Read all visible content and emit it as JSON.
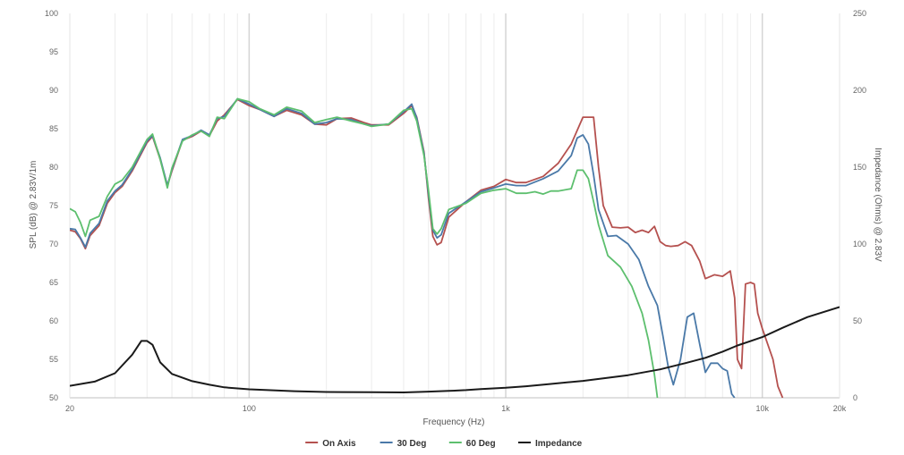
{
  "chart_data": {
    "type": "line",
    "title": "",
    "xlabel": "Frequency (Hz)",
    "ylabel": "SPL (dB) @ 2.83V/1m",
    "y2label": "Impedance (Ohms) @ 2.83V",
    "x_scale": "log",
    "xlim": [
      20,
      20000
    ],
    "ylim": [
      50,
      100
    ],
    "y2lim": [
      0,
      250
    ],
    "grid": "vertical",
    "x_ticks": [
      {
        "value": 20,
        "label": "20"
      },
      {
        "value": 100,
        "label": "100"
      },
      {
        "value": 1000,
        "label": "1k"
      },
      {
        "value": 10000,
        "label": "10k"
      },
      {
        "value": 20000,
        "label": "20k"
      }
    ],
    "y_ticks": [
      "50",
      "55",
      "60",
      "65",
      "70",
      "75",
      "80",
      "85",
      "90",
      "95",
      "100"
    ],
    "y2_ticks": [
      "0",
      "50",
      "100",
      "150",
      "200",
      "250"
    ],
    "legend_position": "bottom-center",
    "series": [
      {
        "name": "On Axis",
        "color": "#b5514f",
        "axis": "left",
        "points": [
          [
            20,
            71.8
          ],
          [
            21,
            71.6
          ],
          [
            22,
            70.7
          ],
          [
            23,
            69.4
          ],
          [
            24,
            71.1
          ],
          [
            26,
            72.4
          ],
          [
            28,
            75.3
          ],
          [
            30,
            76.7
          ],
          [
            32,
            77.5
          ],
          [
            35,
            79.5
          ],
          [
            40,
            83.2
          ],
          [
            42,
            84.0
          ],
          [
            45,
            81.0
          ],
          [
            48,
            77.6
          ],
          [
            50,
            79.5
          ],
          [
            55,
            83.5
          ],
          [
            60,
            84.0
          ],
          [
            65,
            84.7
          ],
          [
            70,
            84.1
          ],
          [
            75,
            86.0
          ],
          [
            80,
            86.8
          ],
          [
            90,
            88.8
          ],
          [
            100,
            88.0
          ],
          [
            110,
            87.5
          ],
          [
            125,
            86.6
          ],
          [
            140,
            87.4
          ],
          [
            160,
            86.8
          ],
          [
            180,
            85.6
          ],
          [
            200,
            85.5
          ],
          [
            220,
            86.3
          ],
          [
            250,
            86.4
          ],
          [
            280,
            85.8
          ],
          [
            300,
            85.5
          ],
          [
            350,
            85.5
          ],
          [
            400,
            87.0
          ],
          [
            430,
            88.0
          ],
          [
            450,
            86.5
          ],
          [
            480,
            82.0
          ],
          [
            500,
            76.0
          ],
          [
            520,
            71.0
          ],
          [
            540,
            69.9
          ],
          [
            560,
            70.2
          ],
          [
            600,
            73.5
          ],
          [
            700,
            75.5
          ],
          [
            800,
            77.0
          ],
          [
            900,
            77.5
          ],
          [
            1000,
            78.4
          ],
          [
            1100,
            78.0
          ],
          [
            1200,
            78.0
          ],
          [
            1400,
            78.8
          ],
          [
            1600,
            80.5
          ],
          [
            1800,
            83.0
          ],
          [
            2000,
            86.5
          ],
          [
            2200,
            86.5
          ],
          [
            2300,
            80.0
          ],
          [
            2400,
            75.0
          ],
          [
            2600,
            72.2
          ],
          [
            2800,
            72.1
          ],
          [
            3000,
            72.2
          ],
          [
            3200,
            71.5
          ],
          [
            3400,
            71.8
          ],
          [
            3600,
            71.5
          ],
          [
            3800,
            72.3
          ],
          [
            4000,
            70.3
          ],
          [
            4200,
            69.8
          ],
          [
            4400,
            69.7
          ],
          [
            4700,
            69.8
          ],
          [
            5000,
            70.3
          ],
          [
            5300,
            69.8
          ],
          [
            5700,
            67.8
          ],
          [
            6000,
            65.5
          ],
          [
            6500,
            66.0
          ],
          [
            7000,
            65.8
          ],
          [
            7500,
            66.5
          ],
          [
            7800,
            63.0
          ],
          [
            8000,
            55.0
          ],
          [
            8300,
            53.8
          ],
          [
            8600,
            64.8
          ],
          [
            9000,
            65.0
          ],
          [
            9300,
            64.8
          ],
          [
            9600,
            61.0
          ],
          [
            10000,
            59.0
          ],
          [
            11000,
            55.0
          ],
          [
            11500,
            51.5
          ],
          [
            12000,
            50.0
          ]
        ]
      },
      {
        "name": "30 Deg",
        "color": "#4a79a8",
        "axis": "left",
        "points": [
          [
            20,
            72.0
          ],
          [
            21,
            71.9
          ],
          [
            22,
            70.8
          ],
          [
            23,
            69.6
          ],
          [
            24,
            71.4
          ],
          [
            26,
            72.7
          ],
          [
            28,
            75.6
          ],
          [
            30,
            76.9
          ],
          [
            32,
            77.7
          ],
          [
            35,
            79.7
          ],
          [
            40,
            83.4
          ],
          [
            42,
            84.1
          ],
          [
            45,
            81.2
          ],
          [
            48,
            77.6
          ],
          [
            50,
            79.7
          ],
          [
            55,
            83.6
          ],
          [
            60,
            84.1
          ],
          [
            65,
            84.8
          ],
          [
            70,
            84.2
          ],
          [
            75,
            86.3
          ],
          [
            80,
            86.6
          ],
          [
            90,
            88.9
          ],
          [
            100,
            88.2
          ],
          [
            110,
            87.5
          ],
          [
            125,
            86.6
          ],
          [
            140,
            87.6
          ],
          [
            160,
            87.0
          ],
          [
            180,
            85.6
          ],
          [
            200,
            85.8
          ],
          [
            220,
            86.3
          ],
          [
            250,
            86.2
          ],
          [
            280,
            85.6
          ],
          [
            300,
            85.4
          ],
          [
            350,
            85.6
          ],
          [
            400,
            87.2
          ],
          [
            430,
            88.2
          ],
          [
            450,
            86.4
          ],
          [
            480,
            81.8
          ],
          [
            500,
            76.5
          ],
          [
            520,
            71.8
          ],
          [
            540,
            70.8
          ],
          [
            560,
            71.2
          ],
          [
            600,
            74.0
          ],
          [
            700,
            75.5
          ],
          [
            800,
            76.8
          ],
          [
            900,
            77.3
          ],
          [
            1000,
            77.8
          ],
          [
            1100,
            77.6
          ],
          [
            1200,
            77.6
          ],
          [
            1400,
            78.5
          ],
          [
            1600,
            79.5
          ],
          [
            1800,
            81.5
          ],
          [
            1900,
            83.8
          ],
          [
            2000,
            84.2
          ],
          [
            2100,
            83.0
          ],
          [
            2200,
            79.0
          ],
          [
            2300,
            74.5
          ],
          [
            2500,
            71.0
          ],
          [
            2700,
            71.1
          ],
          [
            3000,
            70.0
          ],
          [
            3300,
            68.0
          ],
          [
            3600,
            64.5
          ],
          [
            3900,
            62.0
          ],
          [
            4100,
            58.0
          ],
          [
            4300,
            54.0
          ],
          [
            4500,
            51.7
          ],
          [
            4800,
            55.0
          ],
          [
            5100,
            60.5
          ],
          [
            5400,
            61.0
          ],
          [
            5700,
            57.0
          ],
          [
            6000,
            53.3
          ],
          [
            6300,
            54.5
          ],
          [
            6700,
            54.5
          ],
          [
            7000,
            53.8
          ],
          [
            7300,
            53.5
          ],
          [
            7600,
            50.5
          ],
          [
            7800,
            50.0
          ]
        ]
      },
      {
        "name": "60 Deg",
        "color": "#5dbf6e",
        "axis": "left",
        "points": [
          [
            20,
            74.6
          ],
          [
            21,
            74.2
          ],
          [
            22,
            72.8
          ],
          [
            23,
            71.0
          ],
          [
            24,
            73.1
          ],
          [
            26,
            73.6
          ],
          [
            28,
            76.2
          ],
          [
            30,
            77.8
          ],
          [
            32,
            78.3
          ],
          [
            35,
            80.0
          ],
          [
            40,
            83.6
          ],
          [
            42,
            84.3
          ],
          [
            45,
            81.0
          ],
          [
            48,
            77.3
          ],
          [
            50,
            79.9
          ],
          [
            55,
            83.4
          ],
          [
            60,
            84.2
          ],
          [
            65,
            84.7
          ],
          [
            70,
            84.0
          ],
          [
            75,
            86.5
          ],
          [
            80,
            86.3
          ],
          [
            90,
            88.9
          ],
          [
            100,
            88.5
          ],
          [
            110,
            87.6
          ],
          [
            125,
            86.8
          ],
          [
            140,
            87.8
          ],
          [
            160,
            87.3
          ],
          [
            180,
            85.8
          ],
          [
            200,
            86.2
          ],
          [
            220,
            86.5
          ],
          [
            250,
            86.0
          ],
          [
            280,
            85.6
          ],
          [
            300,
            85.3
          ],
          [
            350,
            85.6
          ],
          [
            400,
            87.4
          ],
          [
            430,
            87.6
          ],
          [
            450,
            86.0
          ],
          [
            480,
            81.5
          ],
          [
            500,
            77.0
          ],
          [
            520,
            72.0
          ],
          [
            540,
            71.3
          ],
          [
            560,
            72.0
          ],
          [
            600,
            74.5
          ],
          [
            700,
            75.3
          ],
          [
            800,
            76.6
          ],
          [
            900,
            77.0
          ],
          [
            1000,
            77.2
          ],
          [
            1100,
            76.6
          ],
          [
            1200,
            76.6
          ],
          [
            1300,
            76.8
          ],
          [
            1400,
            76.5
          ],
          [
            1500,
            76.9
          ],
          [
            1600,
            76.9
          ],
          [
            1800,
            77.2
          ],
          [
            1900,
            79.6
          ],
          [
            2000,
            79.6
          ],
          [
            2100,
            78.5
          ],
          [
            2200,
            75.5
          ],
          [
            2300,
            72.5
          ],
          [
            2500,
            68.5
          ],
          [
            2800,
            67.0
          ],
          [
            3100,
            64.5
          ],
          [
            3400,
            61.0
          ],
          [
            3600,
            57.5
          ],
          [
            3800,
            53.0
          ],
          [
            3900,
            50.0
          ]
        ]
      },
      {
        "name": "Impedance",
        "color": "#1a1a1a",
        "axis": "right",
        "points": [
          [
            20,
            7.8
          ],
          [
            25,
            10.5
          ],
          [
            30,
            16.0
          ],
          [
            35,
            28.0
          ],
          [
            38,
            37.0
          ],
          [
            40,
            37.0
          ],
          [
            42,
            34.5
          ],
          [
            45,
            23.0
          ],
          [
            50,
            15.5
          ],
          [
            60,
            10.8
          ],
          [
            70,
            8.5
          ],
          [
            80,
            6.8
          ],
          [
            100,
            5.5
          ],
          [
            150,
            4.3
          ],
          [
            200,
            3.8
          ],
          [
            300,
            3.6
          ],
          [
            400,
            3.5
          ],
          [
            500,
            4.0
          ],
          [
            600,
            4.5
          ],
          [
            700,
            5.0
          ],
          [
            800,
            5.7
          ],
          [
            1000,
            6.5
          ],
          [
            1200,
            7.5
          ],
          [
            1500,
            9.0
          ],
          [
            2000,
            11.0
          ],
          [
            3000,
            14.7
          ],
          [
            4000,
            18.5
          ],
          [
            5000,
            22.5
          ],
          [
            6000,
            26.0
          ],
          [
            7000,
            30.0
          ],
          [
            8000,
            34.0
          ],
          [
            10000,
            39.5
          ],
          [
            12000,
            45.5
          ],
          [
            15000,
            52.5
          ],
          [
            20000,
            59.0
          ]
        ]
      }
    ]
  }
}
